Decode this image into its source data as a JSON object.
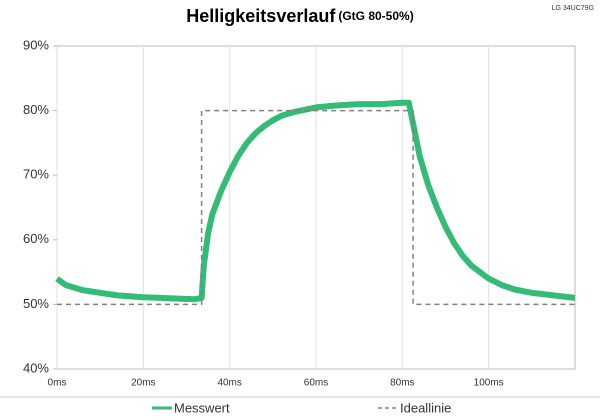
{
  "chart_data": {
    "type": "line",
    "title": "Helligkeitsverlauf",
    "subtitle": "(GtG 80-50%)",
    "annotation": "LG 34UC79G",
    "xlim": [
      0,
      120
    ],
    "ylim": [
      40,
      90
    ],
    "xticks": [
      {
        "value": 0,
        "label": "0ms"
      },
      {
        "value": 20,
        "label": "20ms"
      },
      {
        "value": 40,
        "label": "40ms"
      },
      {
        "value": 60,
        "label": "60ms"
      },
      {
        "value": 80,
        "label": "80ms"
      },
      {
        "value": 100,
        "label": "100ms"
      }
    ],
    "yticks": [
      {
        "value": 40,
        "label": "40%"
      },
      {
        "value": 50,
        "label": "50%"
      },
      {
        "value": 60,
        "label": "60%"
      },
      {
        "value": 70,
        "label": "70%"
      },
      {
        "value": 80,
        "label": "80%"
      },
      {
        "value": 90,
        "label": "90%"
      }
    ],
    "grid": true,
    "legend": "bottom",
    "series": [
      {
        "name": "Messwert",
        "color": "#33bb77",
        "style": "solid",
        "x": [
          0,
          2,
          4,
          6,
          8,
          10,
          12,
          14,
          16,
          18,
          20,
          24,
          28,
          32,
          33.5,
          34,
          35,
          36,
          38,
          40,
          42,
          44,
          46,
          48,
          50,
          52,
          55,
          60,
          65,
          70,
          75,
          80,
          81.5,
          82.5,
          84,
          86,
          88,
          90,
          92,
          94,
          96,
          98,
          100,
          103,
          106,
          110,
          115,
          120
        ],
        "values": [
          54,
          53,
          52.6,
          52.2,
          52,
          51.8,
          51.6,
          51.4,
          51.3,
          51.2,
          51.1,
          51,
          50.9,
          50.8,
          51,
          56,
          61,
          64,
          67.5,
          70.5,
          73,
          75,
          76.5,
          77.6,
          78.5,
          79.2,
          79.8,
          80.5,
          80.8,
          81,
          81,
          81.2,
          81.2,
          78,
          73,
          68.5,
          65,
          62,
          59.5,
          57.5,
          56,
          55,
          54,
          53,
          52.3,
          51.8,
          51.4,
          51
        ]
      },
      {
        "name": "Ideallinie",
        "color": "#808080",
        "style": "dashed",
        "x": [
          0,
          33.5,
          33.5,
          82.5,
          82.5,
          120
        ],
        "values": [
          50,
          50,
          80,
          80,
          50,
          50
        ]
      }
    ]
  }
}
